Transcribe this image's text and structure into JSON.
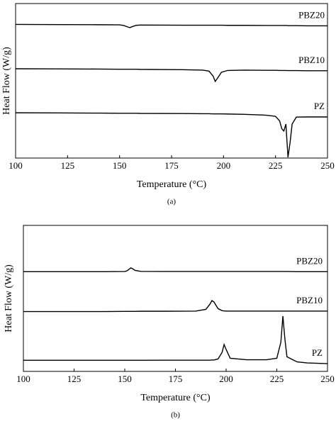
{
  "chart_data": [
    {
      "type": "line",
      "caption": "(a)",
      "xlabel": "Temperature (°C)",
      "ylabel": "Heat Flow (W/g)",
      "xlim": [
        100,
        250
      ],
      "xticks": [
        100,
        125,
        150,
        175,
        200,
        225,
        250
      ],
      "ylim": [
        0,
        100
      ],
      "x": [
        100,
        120,
        140,
        150,
        152,
        154,
        155,
        156,
        158,
        160,
        180,
        190,
        193,
        195,
        196,
        197,
        199,
        202,
        210,
        220,
        225,
        227,
        228,
        229,
        230,
        231,
        232,
        233,
        235,
        240,
        250
      ],
      "series": [
        {
          "name": "PBZ20",
          "color": "#000000",
          "values": [
            86.5,
            86.4,
            86.3,
            86.2,
            85.8,
            84.8,
            84.4,
            85.0,
            85.9,
            86.1,
            86.0,
            86.0,
            86.0,
            86.0,
            86.0,
            86.0,
            86.0,
            85.9,
            85.9,
            85.8,
            85.8,
            85.8,
            85.8,
            85.8,
            85.8,
            85.7,
            85.7,
            85.7,
            85.7,
            85.6,
            85.6
          ]
        },
        {
          "name": "PBZ10",
          "color": "#000000",
          "values": [
            57.8,
            57.7,
            57.6,
            57.5,
            57.5,
            57.5,
            57.5,
            57.5,
            57.5,
            57.4,
            57.2,
            56.9,
            56.3,
            53.0,
            49.6,
            51.5,
            55.5,
            56.7,
            56.9,
            56.8,
            56.8,
            56.7,
            56.7,
            56.7,
            56.7,
            56.6,
            56.6,
            56.6,
            56.6,
            56.5,
            56.5
          ]
        },
        {
          "name": "PZ",
          "color": "#000000",
          "values": [
            29.3,
            29.2,
            29.1,
            29.0,
            29.0,
            29.0,
            29.0,
            29.0,
            29.0,
            28.9,
            28.8,
            28.7,
            28.7,
            28.6,
            28.6,
            28.6,
            28.6,
            28.5,
            28.3,
            27.8,
            27.0,
            24.0,
            19.0,
            17.5,
            22.0,
            0.5,
            10.0,
            22.0,
            26.5,
            26.6,
            26.6
          ]
        }
      ]
    },
    {
      "type": "line",
      "caption": "(b)",
      "xlabel": "Temperature (°C)",
      "ylabel": "Heat Flow (W/g)",
      "xlim": [
        100,
        250
      ],
      "xticks": [
        100,
        125,
        150,
        175,
        200,
        225,
        250
      ],
      "ylim": [
        0,
        100
      ],
      "x": [
        100,
        120,
        140,
        150,
        151,
        152,
        153,
        154,
        155,
        158,
        170,
        185,
        190,
        192,
        193,
        194,
        196,
        198,
        199,
        200,
        202,
        210,
        220,
        225,
        227,
        228,
        229,
        230,
        235,
        240,
        250
      ],
      "series": [
        {
          "name": "PBZ20",
          "color": "#000000",
          "values": [
            68.3,
            68.3,
            68.3,
            68.4,
            68.8,
            69.8,
            70.9,
            70.2,
            69.2,
            68.5,
            68.4,
            68.4,
            68.4,
            68.4,
            68.4,
            68.4,
            68.4,
            68.4,
            68.4,
            68.4,
            68.4,
            68.4,
            68.4,
            68.4,
            68.4,
            68.4,
            68.4,
            68.4,
            68.3,
            68.3,
            68.3
          ]
        },
        {
          "name": "PBZ10",
          "color": "#000000",
          "values": [
            41.0,
            41.0,
            41.0,
            41.1,
            41.1,
            41.1,
            41.1,
            41.1,
            41.1,
            41.2,
            41.2,
            41.3,
            42.5,
            46.0,
            48.5,
            47.5,
            43.0,
            41.6,
            41.4,
            41.3,
            41.3,
            41.3,
            41.3,
            41.3,
            41.3,
            41.3,
            41.3,
            41.3,
            41.3,
            41.3,
            41.3
          ]
        },
        {
          "name": "PZ",
          "color": "#000000",
          "values": [
            7.6,
            7.6,
            7.6,
            7.6,
            7.6,
            7.6,
            7.6,
            7.6,
            7.6,
            7.6,
            7.7,
            7.7,
            7.7,
            7.7,
            7.8,
            7.8,
            8.5,
            13.0,
            18.4,
            15.0,
            9.0,
            8.0,
            8.0,
            9.0,
            20.0,
            37.9,
            22.0,
            10.0,
            6.5,
            5.8,
            5.3
          ]
        }
      ]
    }
  ]
}
